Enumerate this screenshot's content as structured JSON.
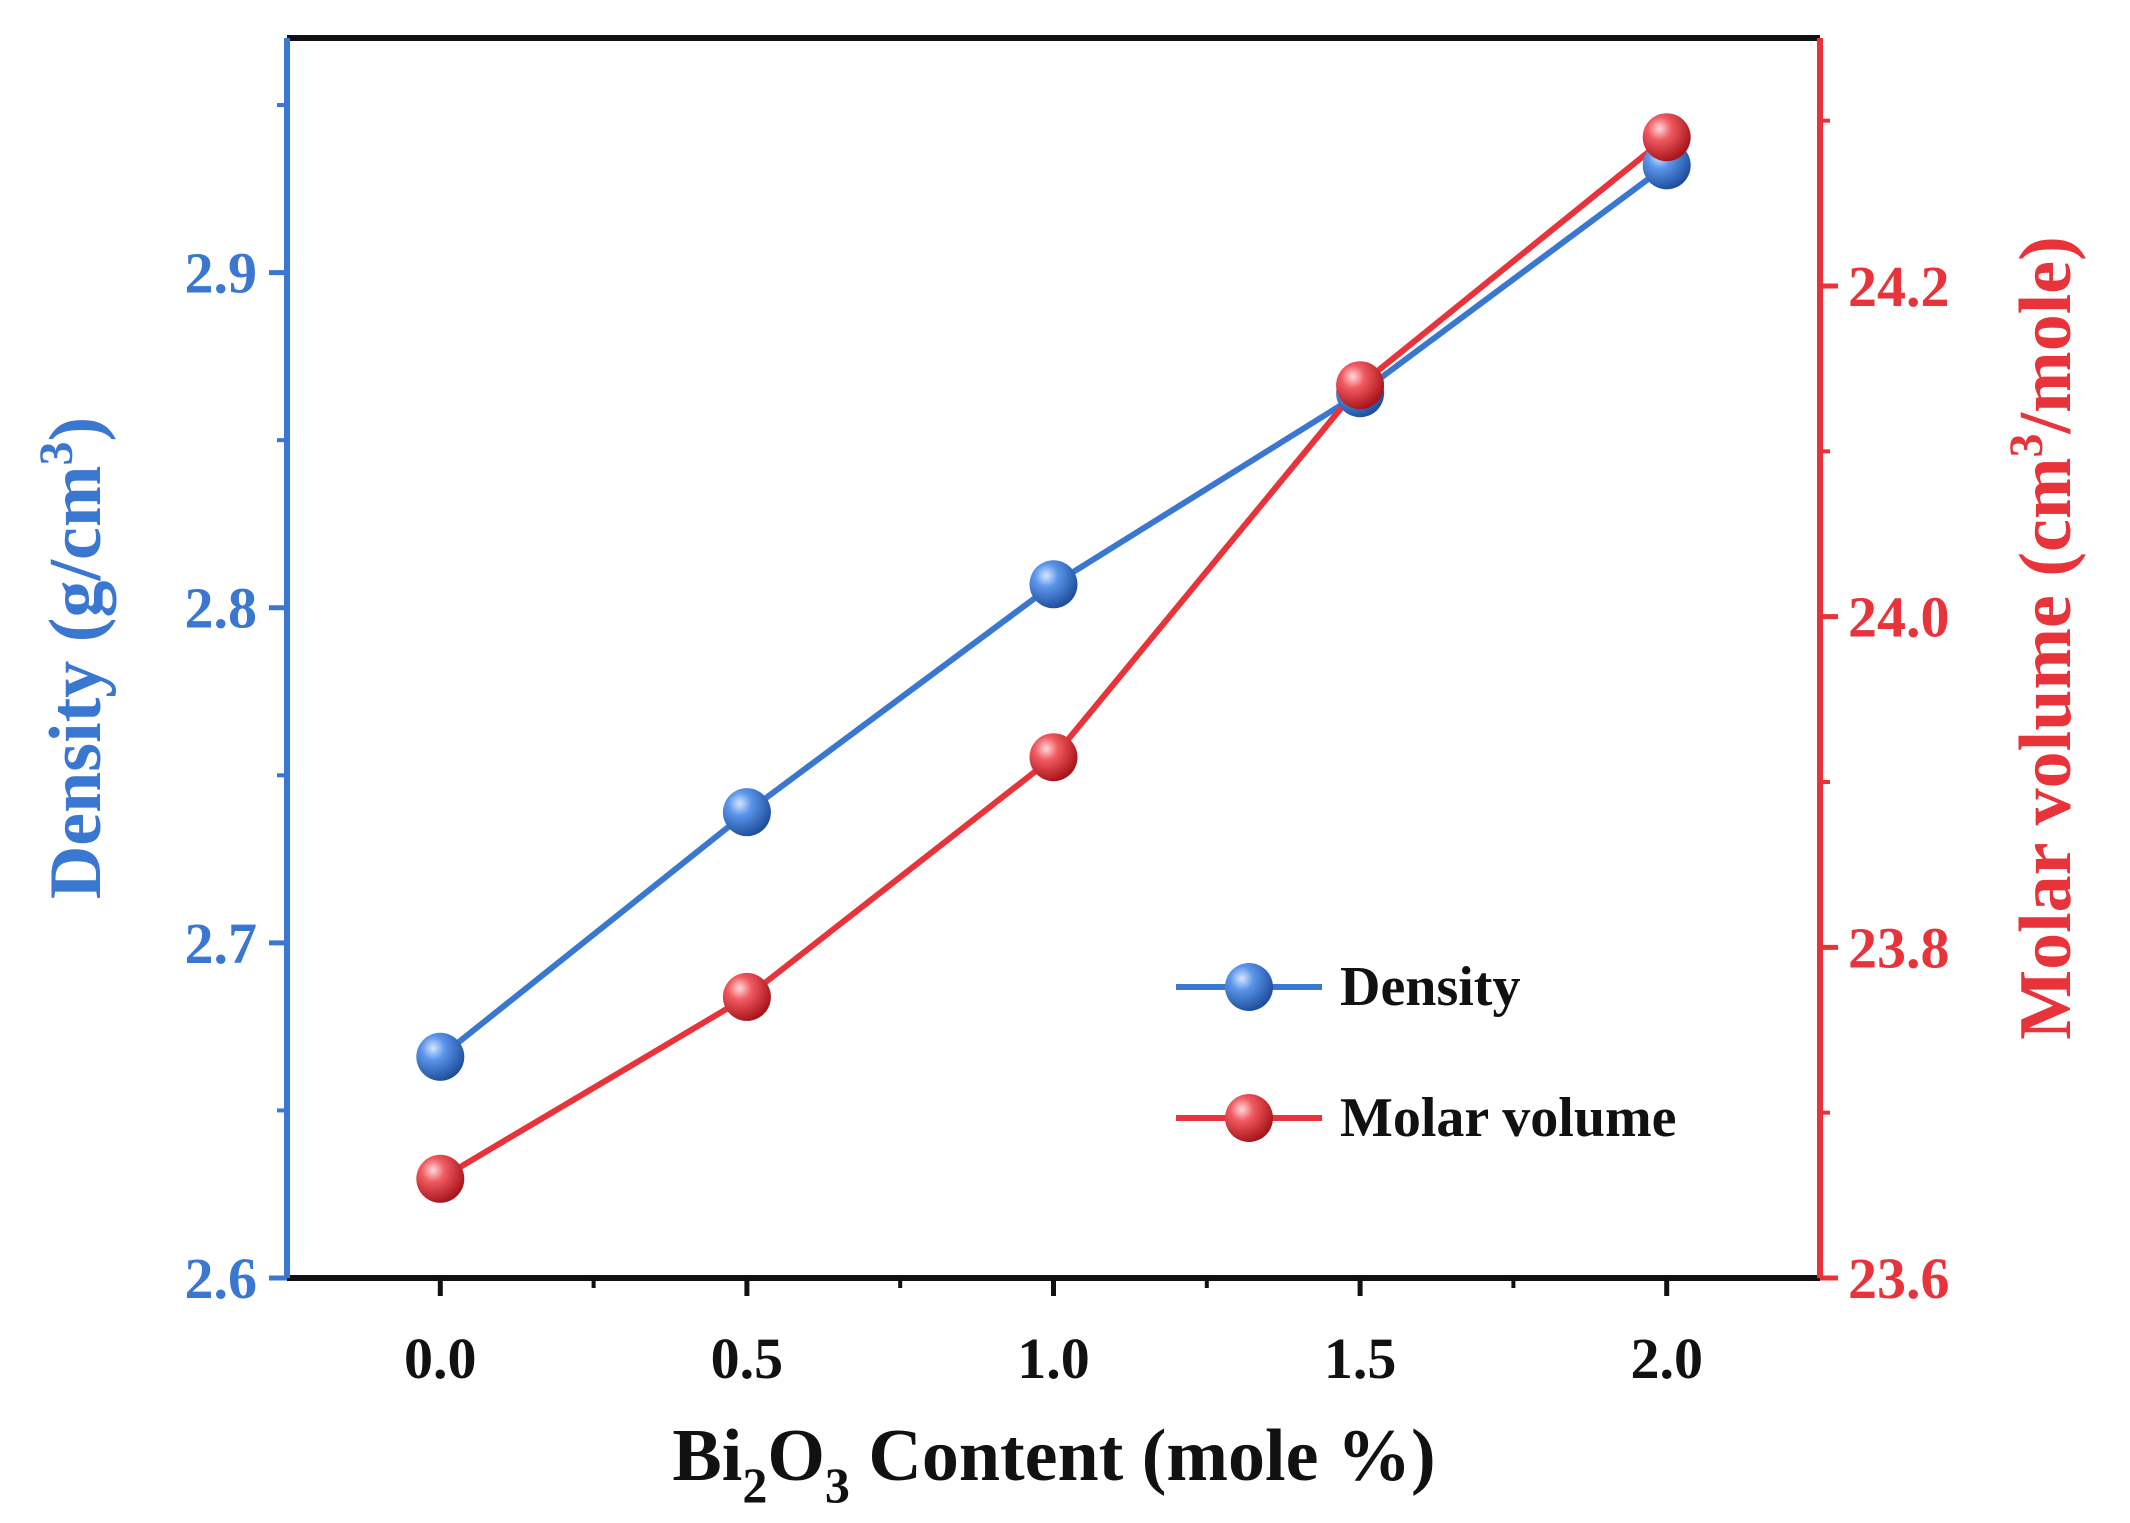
{
  "chart_data": {
    "type": "line",
    "x": [
      0.0,
      0.5,
      1.0,
      1.5,
      2.0
    ],
    "x_tick_labels": [
      "0.0",
      "0.5",
      "1.0",
      "1.5",
      "2.0"
    ],
    "xlim": [
      -0.25,
      2.25
    ],
    "xlabel": {
      "prefix": "Bi",
      "sub1": "2",
      "mid": "O",
      "sub2": "3",
      "suffix": " Content (mole %)"
    },
    "left_axis": {
      "ylim": [
        2.6,
        2.97
      ],
      "ticks": [
        2.6,
        2.7,
        2.8,
        2.9
      ],
      "tick_labels": [
        "2.6",
        "2.7",
        "2.8",
        "2.9"
      ],
      "label": {
        "main": "Density (g/cm",
        "sup": "3",
        "end": ")"
      },
      "color": "#3a77d1"
    },
    "right_axis": {
      "ylim": [
        23.6,
        24.35
      ],
      "ticks": [
        23.6,
        23.8,
        24.0,
        24.2
      ],
      "tick_labels": [
        "23.6",
        "23.8",
        "24.0",
        "24.2"
      ],
      "label": {
        "main": "Molar volume (cm",
        "sup": "3",
        "end": "/mole)"
      },
      "color": "#e8333a"
    },
    "series": [
      {
        "name": "Density",
        "axis": "left",
        "color": "#3a77d1",
        "values": [
          2.666,
          2.739,
          2.807,
          2.864,
          2.932
        ]
      },
      {
        "name": "Molar volume",
        "axis": "right",
        "color": "#e8333a",
        "values": [
          23.66,
          23.77,
          23.915,
          24.14,
          24.29
        ]
      }
    ],
    "legend_position": "lower-right",
    "grid": false
  }
}
